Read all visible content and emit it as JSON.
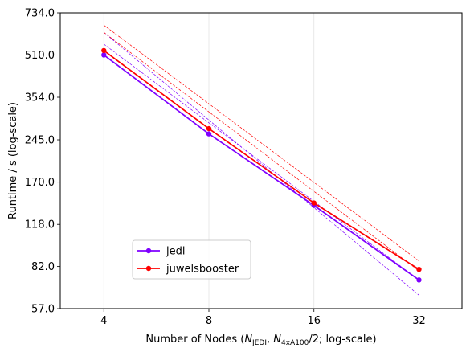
{
  "chart_data": {
    "type": "line",
    "xlabel": {
      "prefix": "Number of Nodes (",
      "n1_main": "N",
      "n1_sub": "JEDI",
      "separator": ", ",
      "n2_main": "N",
      "n2_sub": "4xA100",
      "suffix": "/2; log-scale)"
    },
    "ylabel": "Runtime / s (log-scale)",
    "x_scale": "log",
    "y_scale": "log",
    "xlim": [
      3.0,
      42.5
    ],
    "ylim": [
      57.0,
      734.0
    ],
    "x_ticks": [
      4,
      8,
      16,
      32
    ],
    "x_tick_labels": [
      "4",
      "8",
      "16",
      "32"
    ],
    "y_ticks": [
      57.0,
      82.0,
      118.0,
      170.0,
      245.0,
      354.0,
      510.0,
      734.0
    ],
    "y_tick_labels": [
      "57.0",
      "82.0",
      "118.0",
      "170.0",
      "245.0",
      "354.0",
      "510.0",
      "734.0"
    ],
    "grid": "x-only",
    "legend_position": "lower-left",
    "series": [
      {
        "name": "jedi",
        "color": "#7f00ff",
        "x": [
          4,
          8,
          16,
          32
        ],
        "y": [
          510,
          258,
          139,
          73
        ],
        "reference_lines": [
          {
            "x": [
              4,
              32
            ],
            "y": [
              620,
              64
            ]
          },
          {
            "x": [
              4,
              32
            ],
            "y": [
              560,
              73
            ]
          }
        ]
      },
      {
        "name": "juwelsbooster",
        "color": "#ff0000",
        "x": [
          4,
          8,
          16,
          32
        ],
        "y": [
          530,
          270,
          142,
          80
        ],
        "reference_lines": [
          {
            "x": [
              4,
              32
            ],
            "y": [
              660,
              86
            ]
          },
          {
            "x": [
              4,
              32
            ],
            "y": [
              620,
              79
            ]
          }
        ]
      }
    ]
  }
}
